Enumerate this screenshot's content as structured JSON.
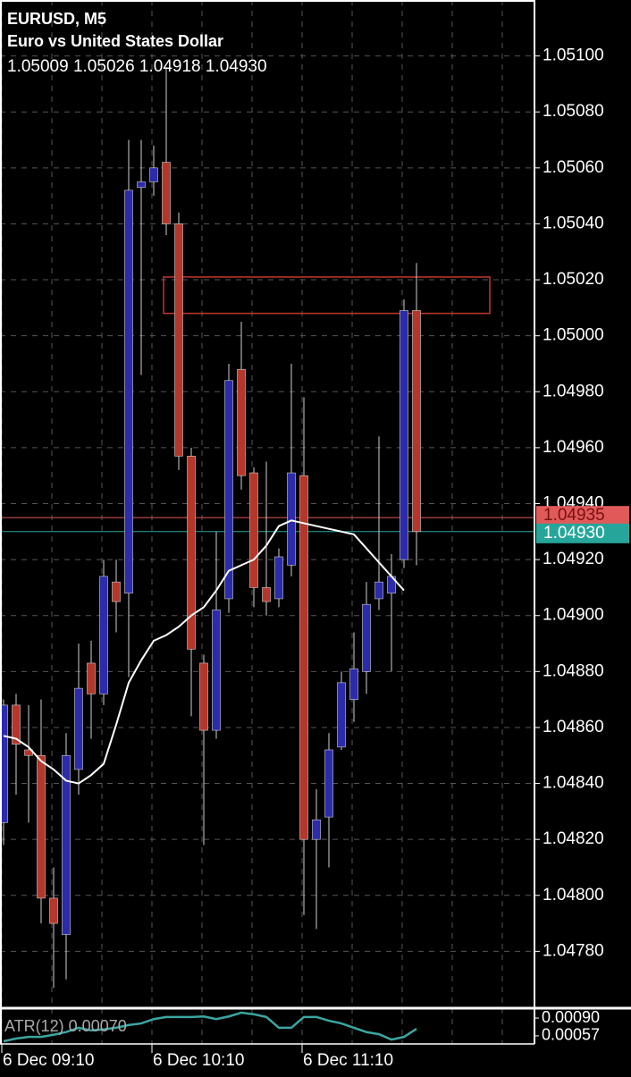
{
  "chart_data": [
    {
      "type": "candlestick",
      "title": "EURUSD, M5",
      "subtitle": "Euro vs United States Dollar",
      "ohlc_text": "1.05009 1.05026 1.04918 1.04930",
      "categories": [
        "6 Dec 09:10",
        null,
        null,
        null,
        null,
        null,
        null,
        null,
        null,
        null,
        null,
        null,
        "6 Dec 10:10",
        null,
        null,
        null,
        null,
        null,
        null,
        null,
        null,
        null,
        null,
        null,
        "6 Dec 11:10",
        null,
        null,
        null,
        null,
        null,
        null,
        null,
        null,
        null
      ],
      "open": [
        1.04826,
        1.04868,
        1.04852,
        1.0485,
        1.04799,
        1.04786,
        1.04845,
        1.04883,
        1.04872,
        1.04912,
        1.04908,
        1.05053,
        1.05055,
        1.05062,
        1.0504,
        1.04957,
        1.04883,
        1.04859,
        1.04906,
        1.04988,
        1.04951,
        1.0491,
        1.04906,
        1.04918,
        1.0495,
        1.0482,
        1.04828,
        1.04853,
        1.0487,
        1.0488,
        1.04906,
        1.04908,
        1.0492,
        1.05009
      ],
      "high": [
        1.0487,
        1.04872,
        1.04868,
        1.0487,
        1.0481,
        1.04858,
        1.0489,
        1.04891,
        1.0492,
        1.0492,
        1.0507,
        1.0507,
        1.05068,
        1.05096,
        1.05044,
        1.0496,
        1.04886,
        1.0493,
        1.0499,
        1.05005,
        1.04953,
        1.04955,
        1.04924,
        1.0499,
        1.04978,
        1.04838,
        1.04858,
        1.0488,
        1.04894,
        1.04912,
        1.04964,
        1.04922,
        1.05013,
        1.05026
      ],
      "low": [
        1.04818,
        1.04836,
        1.04826,
        1.0479,
        1.04767,
        1.0477,
        1.04836,
        1.04856,
        1.04868,
        1.04894,
        1.04878,
        1.04986,
        1.0505,
        1.05036,
        1.04952,
        1.04864,
        1.04818,
        1.04856,
        1.04901,
        1.04945,
        1.04903,
        1.049,
        1.04903,
        1.04914,
        1.04793,
        1.04788,
        1.0481,
        1.04852,
        1.04862,
        1.04872,
        1.04902,
        1.0488,
        1.04917,
        1.04918
      ],
      "close": [
        1.04868,
        1.04854,
        1.0485,
        1.04799,
        1.0479,
        1.0485,
        1.04874,
        1.04872,
        1.04914,
        1.04905,
        1.05052,
        1.05055,
        1.0506,
        1.0504,
        1.04957,
        1.04888,
        1.04859,
        1.04902,
        1.04984,
        1.0495,
        1.0491,
        1.04905,
        1.04921,
        1.04951,
        1.0482,
        1.04827,
        1.04852,
        1.04876,
        1.04881,
        1.04904,
        1.04912,
        1.04914,
        1.05009,
        1.0493
      ],
      "up_color": "#2b2bab",
      "down_color": "#b5362a",
      "ma": {
        "color": "#ffffff",
        "values": [
          1.04857,
          1.04856,
          1.04853,
          1.04848,
          1.04845,
          1.04841,
          1.0484,
          1.04843,
          1.04847,
          1.04861,
          1.04876,
          1.04884,
          1.04891,
          1.04893,
          1.04896,
          1.049,
          1.04903,
          1.04909,
          1.04916,
          1.04918,
          1.0492,
          1.04925,
          1.04932,
          1.04934,
          1.04933,
          1.04932,
          1.04931,
          1.0493,
          1.04929,
          1.04924,
          1.04919,
          1.04914,
          1.04909
        ]
      },
      "zone": {
        "top": 1.05021,
        "bottom": 1.05008,
        "color": "#c0392b"
      },
      "price_lines": [
        {
          "value": 1.04935,
          "label": "1.04935",
          "color": "#e05a5a"
        },
        {
          "value": 1.0493,
          "label": "1.04930",
          "color": "#26a69a"
        }
      ],
      "ylim": [
        1.0476,
        1.0512
      ],
      "yticks": [
        {
          "value": 1.0478,
          "label": "1.04780"
        },
        {
          "value": 1.048,
          "label": "1.04800"
        },
        {
          "value": 1.0482,
          "label": "1.04820"
        },
        {
          "value": 1.0484,
          "label": "1.04840"
        },
        {
          "value": 1.0486,
          "label": "1.04860"
        },
        {
          "value": 1.0488,
          "label": "1.04880"
        },
        {
          "value": 1.049,
          "label": "1.04900"
        },
        {
          "value": 1.0492,
          "label": "1.04920"
        },
        {
          "value": 1.0494,
          "label": "1.04940"
        },
        {
          "value": 1.0496,
          "label": "1.04960"
        },
        {
          "value": 1.0498,
          "label": "1.04980"
        },
        {
          "value": 1.05,
          "label": "1.05000"
        },
        {
          "value": 1.0502,
          "label": "1.05020"
        },
        {
          "value": 1.0504,
          "label": "1.05040"
        },
        {
          "value": 1.0506,
          "label": "1.05060"
        },
        {
          "value": 1.0508,
          "label": "1.05080"
        },
        {
          "value": 1.051,
          "label": "1.05100"
        }
      ],
      "grid": true
    },
    {
      "type": "line",
      "label": "ATR(12) 0.00070",
      "color": "#3aa6a0",
      "values": [
        0.00047,
        0.00052,
        0.00055,
        0.00055,
        0.00059,
        0.00064,
        0.00072,
        0.00067,
        0.00069,
        0.00072,
        0.00077,
        0.0008,
        0.00088,
        0.00092,
        0.00092,
        0.00092,
        0.00093,
        0.00088,
        0.00093,
        0.001,
        0.00097,
        0.00092,
        0.00072,
        0.00072,
        0.00092,
        0.00092,
        0.00085,
        0.0008,
        0.00072,
        0.00064,
        0.0006,
        0.0005,
        0.00055,
        0.0007
      ],
      "ylim": [
        0.00042,
        0.00105
      ],
      "yticks": [
        {
          "value": 0.00057,
          "label": "0.00057"
        },
        {
          "value": 0.0009,
          "label": "0.00090"
        }
      ]
    }
  ]
}
